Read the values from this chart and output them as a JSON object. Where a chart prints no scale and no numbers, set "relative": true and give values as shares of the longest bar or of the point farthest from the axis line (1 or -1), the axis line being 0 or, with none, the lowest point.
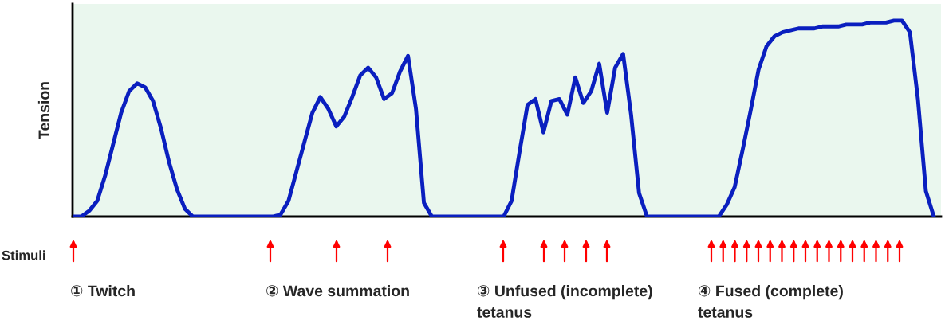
{
  "chart_data": {
    "type": "line",
    "ylabel": "Tension",
    "relative": true,
    "line_style": "solid",
    "categories": [
      null,
      null,
      null,
      null,
      null,
      null,
      null,
      null,
      null,
      null,
      null,
      null,
      null,
      null,
      null,
      null,
      null,
      null,
      null,
      null,
      null,
      null,
      null,
      null,
      null,
      null,
      null,
      null,
      null,
      null,
      null,
      null,
      null,
      null,
      null,
      null,
      null,
      null,
      null,
      null,
      null,
      null,
      null,
      null,
      null,
      null,
      null,
      null,
      null,
      null,
      null,
      null,
      null,
      null,
      null,
      null,
      null,
      null,
      null,
      null,
      null,
      null,
      null,
      null,
      null,
      null,
      null,
      null,
      null,
      null,
      null,
      null,
      null,
      null,
      null,
      null,
      null,
      null,
      null,
      null,
      null,
      null,
      null,
      null,
      null,
      null,
      null,
      null,
      null,
      null,
      null,
      null,
      null,
      null,
      null,
      null,
      null,
      null,
      null,
      null,
      null,
      null,
      null,
      null,
      null,
      null,
      null,
      null,
      null
    ],
    "series": [
      {
        "color": "#0a1fbf",
        "values": [
          0,
          0,
          0.03,
          0.08,
          0.21,
          0.37,
          0.53,
          0.64,
          0.68,
          0.66,
          0.59,
          0.45,
          0.28,
          0.14,
          0.04,
          0,
          0,
          0,
          0,
          0,
          0,
          0,
          0,
          0,
          0,
          0,
          0.01,
          0.08,
          0.23,
          0.38,
          0.53,
          0.61,
          0.55,
          0.46,
          0.51,
          0.61,
          0.72,
          0.76,
          0.71,
          0.6,
          0.63,
          0.74,
          0.82,
          0.55,
          0.07,
          0,
          0,
          0,
          0,
          0,
          0,
          0,
          0,
          0,
          0,
          0.08,
          0.33,
          0.57,
          0.6,
          0.43,
          0.59,
          0.6,
          0.52,
          0.71,
          0.58,
          0.64,
          0.78,
          0.53,
          0.76,
          0.83,
          0.52,
          0.12,
          0,
          0,
          0,
          0,
          0,
          0,
          0,
          0,
          0,
          0,
          0.06,
          0.15,
          0.34,
          0.54,
          0.75,
          0.87,
          0.92,
          0.94,
          0.95,
          0.96,
          0.96,
          0.96,
          0.97,
          0.97,
          0.97,
          0.98,
          0.98,
          0.98,
          0.99,
          0.99,
          0.99,
          1.0,
          1.0,
          0.94,
          0.6,
          0.13,
          0
        ]
      }
    ],
    "annotations": [
      "Stimuli",
      "① Twitch",
      "② Wave summation",
      "③ Unfused (incomplete)\ntetanus",
      "④ Fused (complete)\ntetanus"
    ]
  }
}
